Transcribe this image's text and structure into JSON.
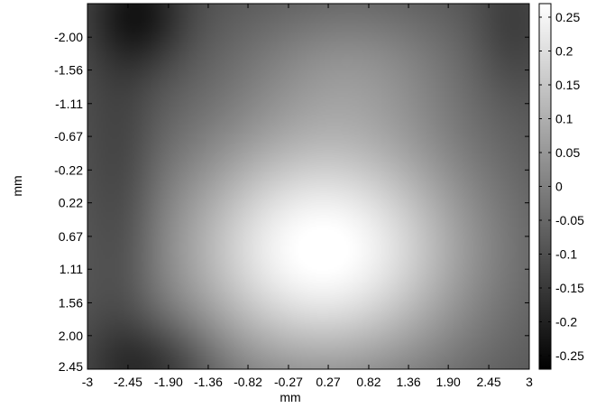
{
  "chart_data": {
    "type": "heatmap",
    "title": "",
    "xlabel": "mm",
    "ylabel": "mm",
    "x_ticks": [
      "-3",
      "-2.45",
      "-1.90",
      "-1.36",
      "-0.82",
      "-0.27",
      "0.27",
      "0.82",
      "1.36",
      "1.90",
      "2.45",
      "3"
    ],
    "x_tick_values": [
      -3,
      -2.45,
      -1.9,
      -1.36,
      -0.82,
      -0.27,
      0.27,
      0.82,
      1.36,
      1.9,
      2.45,
      3
    ],
    "y_ticks": [
      "-2.00",
      "-1.56",
      "-1.11",
      "-0.67",
      "-0.22",
      "0.22",
      "0.67",
      "1.11",
      "1.56",
      "2.00",
      "2.45"
    ],
    "y_tick_values": [
      -2.0,
      -1.56,
      -1.11,
      -0.67,
      -0.22,
      0.22,
      0.67,
      1.11,
      1.56,
      2.0,
      2.45
    ],
    "xlim": [
      -3,
      3
    ],
    "ylim": [
      -2.45,
      2.45
    ],
    "y_axis_reversed": true,
    "colormap": "gray",
    "color_range": [
      -0.27,
      0.27
    ],
    "colorbar_ticks": [
      "0.25",
      "0.2",
      "0.15",
      "0.1",
      "0.05",
      "0",
      "-0.05",
      "-0.1",
      "-0.15",
      "-0.2",
      "-0.25"
    ],
    "colorbar_tick_values": [
      0.25,
      0.2,
      0.15,
      0.1,
      0.05,
      0,
      -0.05,
      -0.1,
      -0.15,
      -0.2,
      -0.25
    ],
    "field_components": [
      {
        "kind": "base",
        "value": -0.1
      },
      {
        "kind": "gaussian",
        "x": 0.2,
        "y": 0.85,
        "sx": 1.45,
        "sy": 1.2,
        "amplitude": 0.38
      },
      {
        "kind": "gaussian",
        "x": 0.6,
        "y": -1.6,
        "sx": 1.1,
        "sy": 0.7,
        "amplitude": 0.1
      },
      {
        "kind": "gaussian",
        "x": -2.3,
        "y": -2.3,
        "sx": 0.45,
        "sy": 0.5,
        "amplitude": -0.12
      },
      {
        "kind": "gaussian",
        "x": -2.1,
        "y": 2.4,
        "sx": 0.6,
        "sy": 0.45,
        "amplitude": -0.1
      },
      {
        "kind": "gaussian",
        "x": -2.55,
        "y": 0.3,
        "sx": 0.35,
        "sy": 1.6,
        "amplitude": -0.06
      },
      {
        "kind": "gaussian",
        "x": 2.75,
        "y": -2.1,
        "sx": 0.35,
        "sy": 0.6,
        "amplitude": -0.05
      }
    ]
  }
}
